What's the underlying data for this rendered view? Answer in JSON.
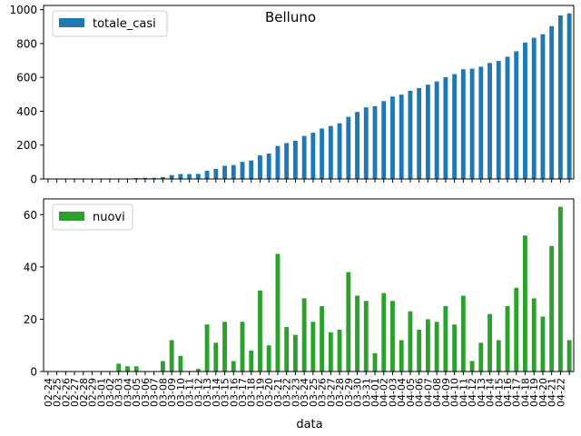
{
  "title": "Belluno",
  "chart_data": [
    {
      "type": "bar",
      "title": "Belluno",
      "xlabel": "",
      "ylabel": "",
      "ylim": [
        0,
        1025
      ],
      "yticks": [
        0,
        200,
        400,
        600,
        800,
        1000
      ],
      "legend_position": "top-left",
      "color": "#1f77b4",
      "series": [
        {
          "name": "totale_casi",
          "values": [
            0,
            0,
            0,
            0,
            0,
            0,
            0,
            0,
            0,
            3,
            5,
            7,
            7,
            11,
            23,
            29,
            29,
            30,
            48,
            59,
            78,
            82,
            101,
            109,
            140,
            150,
            195,
            212,
            226,
            254,
            273,
            298,
            313,
            329,
            367,
            396,
            423,
            430,
            460,
            487,
            498,
            521,
            537,
            557,
            576,
            601,
            619,
            648,
            652,
            663,
            685,
            697,
            722,
            754,
            806,
            834,
            855,
            903,
            966,
            978
          ]
        }
      ]
    },
    {
      "type": "bar",
      "xlabel": "data",
      "ylabel": "",
      "ylim": [
        0,
        66
      ],
      "yticks": [
        0,
        20,
        40,
        60
      ],
      "legend_position": "top-left",
      "color": "#2ca02c",
      "categories": [
        "02-24",
        "02-25",
        "02-26",
        "02-27",
        "02-28",
        "02-29",
        "03-01",
        "03-02",
        "03-03",
        "03-04",
        "03-05",
        "03-06",
        "03-07",
        "03-08",
        "03-09",
        "03-10",
        "03-11",
        "03-12",
        "03-13",
        "03-14",
        "03-15",
        "03-16",
        "03-17",
        "03-18",
        "03-19",
        "03-20",
        "03-21",
        "03-22",
        "03-23",
        "03-24",
        "03-25",
        "03-26",
        "03-27",
        "03-28",
        "03-29",
        "03-30",
        "03-31",
        "04-01",
        "04-02",
        "04-03",
        "04-04",
        "04-05",
        "04-06",
        "04-07",
        "04-08",
        "04-09",
        "04-10",
        "04-11",
        "04-12",
        "04-13",
        "04-14",
        "04-15",
        "04-16",
        "04-17",
        "04-18",
        "04-19",
        "04-20",
        "04-21",
        "04-22"
      ],
      "series": [
        {
          "name": "nuovi",
          "values": [
            0,
            0,
            0,
            0,
            0,
            0,
            0,
            3,
            2,
            2,
            0,
            0,
            4,
            12,
            6,
            0,
            1,
            18,
            11,
            19,
            4,
            19,
            8,
            31,
            10,
            45,
            17,
            14,
            28,
            19,
            25,
            15,
            16,
            38,
            29,
            27,
            7,
            30,
            27,
            12,
            23,
            16,
            20,
            19,
            25,
            18,
            29,
            4,
            11,
            22,
            12,
            25,
            32,
            52,
            28,
            21,
            48,
            63,
            12
          ]
        }
      ]
    }
  ]
}
